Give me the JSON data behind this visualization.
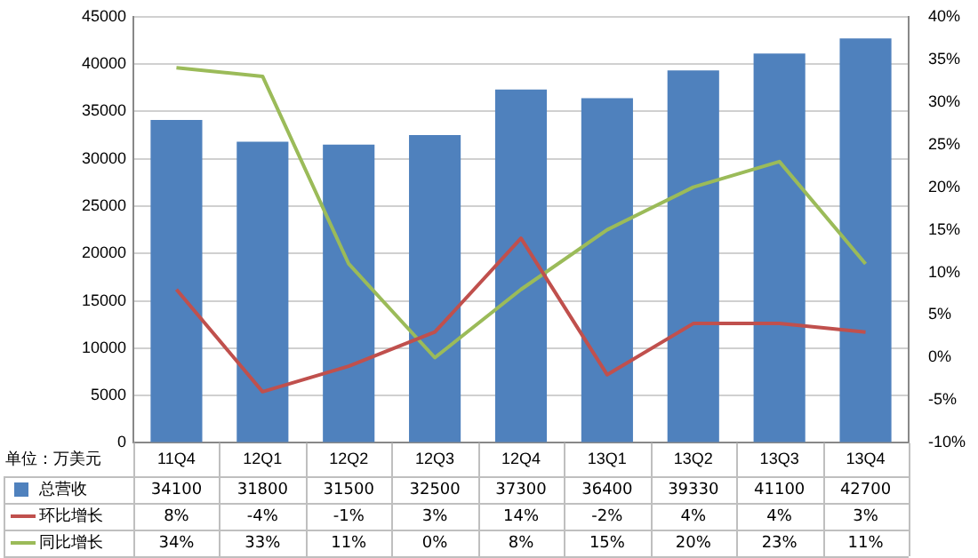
{
  "chart_data": {
    "type": "bar",
    "categories": [
      "11Q4",
      "12Q1",
      "12Q2",
      "12Q3",
      "12Q4",
      "13Q1",
      "13Q2",
      "13Q3",
      "13Q4"
    ],
    "series": [
      {
        "name": "总营收",
        "color": "#4f81bd",
        "values": [
          34100,
          31800,
          31500,
          32500,
          37300,
          36400,
          39330,
          41100,
          42700
        ],
        "value_labels": [
          "34100",
          "31800",
          "31500",
          "32500",
          "37300",
          "36400",
          "39330",
          "41100",
          "42700"
        ]
      },
      {
        "name": "环比增长",
        "type": "line",
        "axis": "y2",
        "color": "#c0504d",
        "values": [
          8,
          -4,
          -1,
          3,
          14,
          -2,
          4,
          4,
          3
        ],
        "value_labels": [
          "8%",
          "-4%",
          "-1%",
          "3%",
          "14%",
          "-2%",
          "4%",
          "4%",
          "3%"
        ]
      },
      {
        "name": "同比增长",
        "type": "line",
        "axis": "y2",
        "color": "#9bbb59",
        "values": [
          34,
          33,
          11,
          0,
          8,
          15,
          20,
          23,
          11
        ],
        "value_labels": [
          "34%",
          "33%",
          "11%",
          "0%",
          "8%",
          "15%",
          "20%",
          "23%",
          "11%"
        ]
      }
    ],
    "ylim": [
      0,
      45000
    ],
    "yticks": [
      0,
      5000,
      10000,
      15000,
      20000,
      25000,
      30000,
      35000,
      40000,
      45000
    ],
    "y2lim": [
      -10,
      40
    ],
    "y2ticks": [
      {
        "value": -10,
        "label": "-10%"
      },
      {
        "value": -5,
        "label": "-5%"
      },
      {
        "value": 0,
        "label": "0%"
      },
      {
        "value": 5,
        "label": "5%"
      },
      {
        "value": 10,
        "label": "10%"
      },
      {
        "value": 15,
        "label": "15%"
      },
      {
        "value": 20,
        "label": "20%"
      },
      {
        "value": 25,
        "label": "25%"
      },
      {
        "value": 30,
        "label": "30%"
      },
      {
        "value": 35,
        "label": "35%"
      },
      {
        "value": 40,
        "label": "40%"
      }
    ],
    "grid": "y",
    "legend": "bottom",
    "marker": "none",
    "line_style": "solid",
    "annotations": [
      "单位：万美元"
    ]
  }
}
